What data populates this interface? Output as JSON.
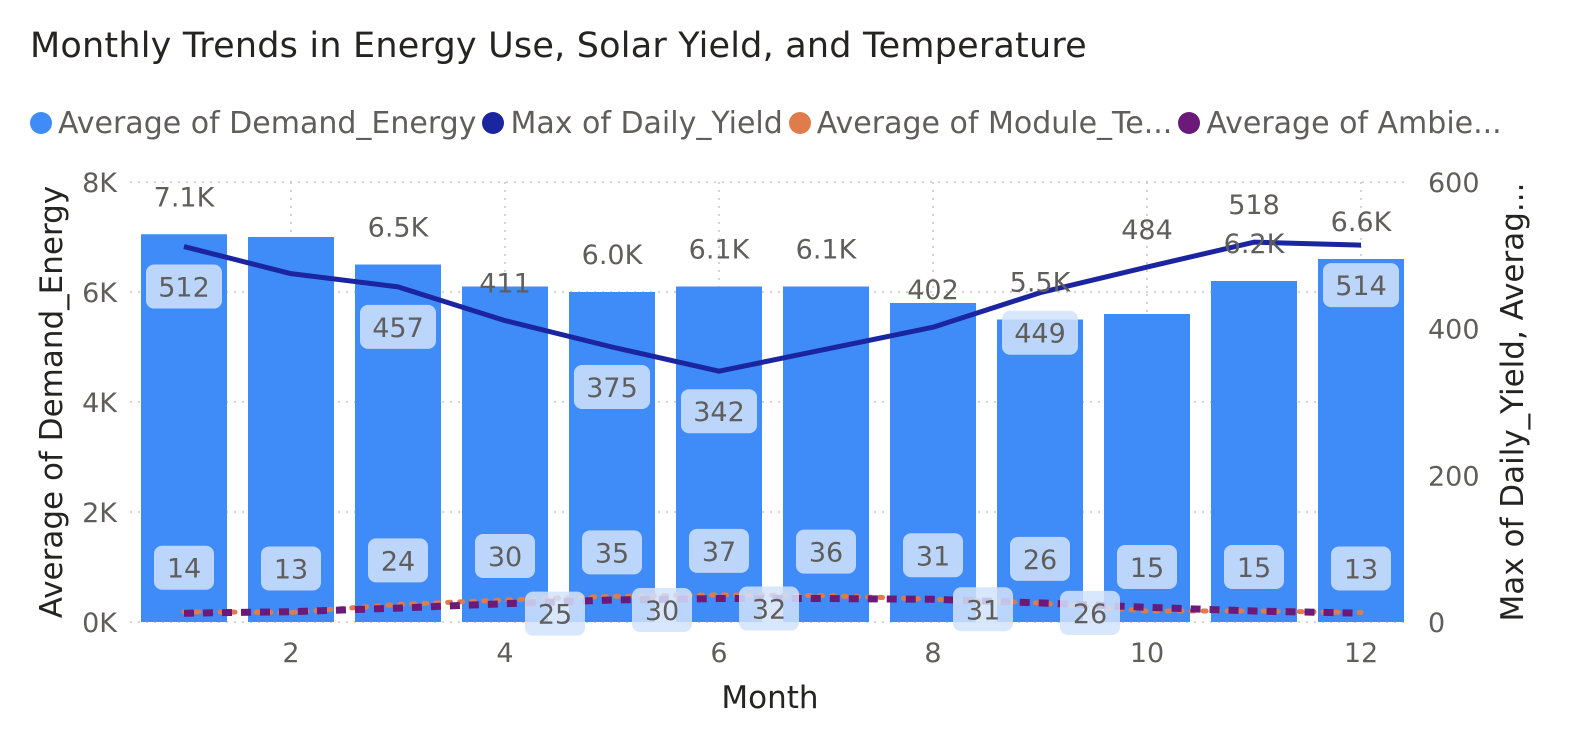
{
  "chart_data": {
    "type": "combo",
    "title": "Monthly Trends in Energy Use, Solar Yield, and Temperature",
    "xlabel": "Month",
    "ylabel_left": "Average of Demand_Energy",
    "ylabel_right": "Max of Daily_Yield, Averag...",
    "x_ticks": [
      "2",
      "4",
      "6",
      "8",
      "10",
      "12"
    ],
    "y_left_ticks": [
      "0K",
      "2K",
      "4K",
      "6K",
      "8K"
    ],
    "y_right_ticks": [
      "0",
      "200",
      "400",
      "600"
    ],
    "y_left_range": [
      0,
      8000
    ],
    "y_right_range": [
      0,
      600
    ],
    "x_range": [
      1,
      12
    ],
    "grid": "dotted",
    "legend_position": "top-left",
    "legend": [
      {
        "name": "Average of Demand_Energy",
        "color": "#3f8bf7"
      },
      {
        "name": "Max of Daily_Yield",
        "color": "#1b25a0"
      },
      {
        "name": "Average of Module_Te...",
        "color": "#e07b4c"
      },
      {
        "name": "Average of Ambie...",
        "color": "#6b1a7a"
      }
    ],
    "months": [
      1,
      2,
      3,
      4,
      5,
      6,
      7,
      8,
      9,
      10,
      11,
      12
    ],
    "series": [
      {
        "name": "Average of Demand_Energy",
        "type": "bar",
        "axis": "left",
        "values": [
          7050,
          7000,
          6500,
          6100,
          6000,
          6100,
          6100,
          5800,
          5500,
          5600,
          6200,
          6600
        ],
        "labels": [
          "7.1K",
          "",
          "6.5K",
          "",
          "6.0K",
          "6.1K",
          "6.1K",
          "",
          "5.5K",
          "",
          "6.2K",
          "6.6K"
        ]
      },
      {
        "name": "Max of Daily_Yield",
        "type": "line",
        "axis": "right",
        "values": [
          512,
          475,
          457,
          411,
          375,
          342,
          372,
          402,
          449,
          484,
          518,
          514
        ],
        "labels": [
          "512",
          "",
          "457",
          "411",
          "375",
          "342",
          "",
          "402",
          "449",
          "484",
          "518",
          "514"
        ]
      },
      {
        "name": "Average of Module_Te...",
        "type": "line",
        "axis": "right",
        "values": [
          14,
          13,
          24,
          30,
          35,
          37,
          36,
          31,
          26,
          15,
          15,
          13
        ],
        "labels": [
          "14",
          "13",
          "24",
          "30",
          "35",
          "37",
          "36",
          "31",
          "26",
          "15",
          "15",
          "13"
        ]
      },
      {
        "name": "Average of Ambie...",
        "type": "line",
        "axis": "right",
        "values": [
          12,
          14,
          19,
          25,
          30,
          32,
          32,
          31,
          26,
          20,
          15,
          12
        ],
        "labels": [
          "",
          "",
          "",
          "25",
          "30",
          "32",
          "",
          "31",
          "26",
          "",
          "",
          ""
        ]
      }
    ]
  }
}
